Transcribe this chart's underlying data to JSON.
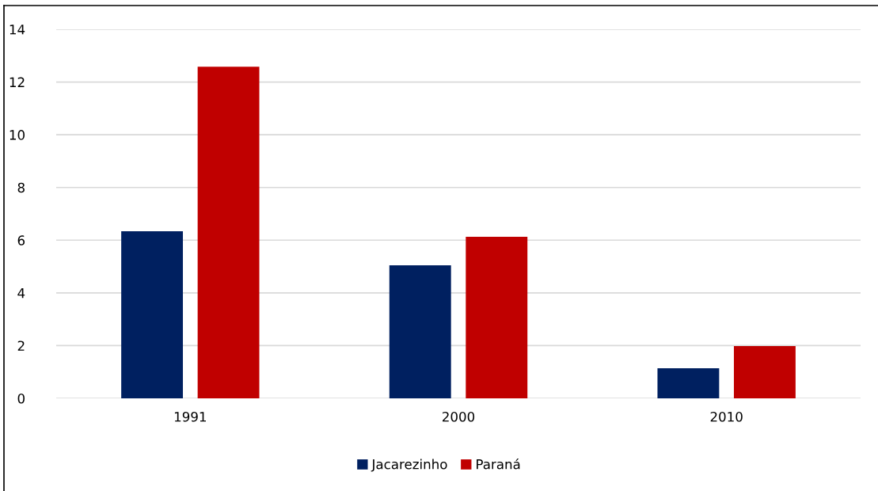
{
  "chart_data": {
    "type": "bar",
    "categories": [
      "1991",
      "2000",
      "2010"
    ],
    "series": [
      {
        "name": "Jacarezinho",
        "color": "#002060",
        "values": [
          6.34,
          5.05,
          1.14
        ]
      },
      {
        "name": "Paraná",
        "color": "#c00000",
        "values": [
          12.58,
          6.13,
          1.98
        ]
      }
    ],
    "ylim": [
      0,
      14
    ],
    "yticks": [
      0,
      2,
      4,
      6,
      8,
      10,
      12,
      14
    ],
    "grid": "y",
    "legend": "bottom"
  }
}
